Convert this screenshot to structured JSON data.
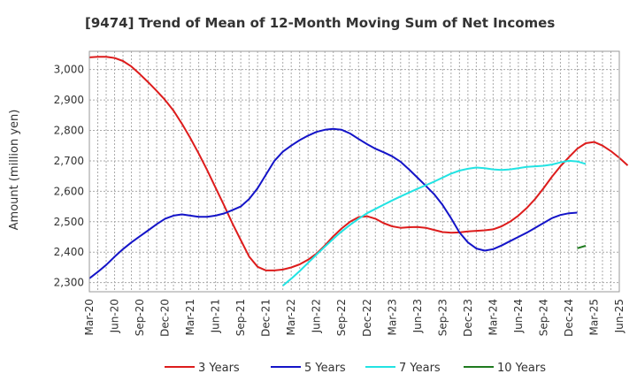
{
  "chart_data": {
    "type": "line",
    "title": "[9474]  Trend of Mean of 12-Month Moving Sum of Net Incomes",
    "ylabel": "Amount (million yen)",
    "xlabel": "",
    "ylim": [
      2270,
      3060
    ],
    "yticks": [
      2300,
      2400,
      2500,
      2600,
      2700,
      2800,
      2900,
      3000
    ],
    "ytick_labels": [
      "2,300",
      "2,400",
      "2,500",
      "2,600",
      "2,700",
      "2,800",
      "2,900",
      "3,000"
    ],
    "x_ticks": [
      "Mar-20",
      "Jun-20",
      "Sep-20",
      "Dec-20",
      "Mar-21",
      "Jun-21",
      "Sep-21",
      "Dec-21",
      "Mar-22",
      "Jun-22",
      "Sep-22",
      "Dec-22",
      "Mar-23",
      "Jun-23",
      "Sep-23",
      "Dec-23",
      "Mar-24",
      "Jun-24",
      "Sep-24",
      "Dec-24",
      "Mar-25",
      "Jun-25"
    ],
    "grid": true,
    "legend_position": "bottom",
    "series": [
      {
        "name": "3 Years",
        "color": "#dd1c1c",
        "start": "Mar-20",
        "values": [
          3040,
          3042,
          3042,
          3038,
          3028,
          3010,
          2985,
          2958,
          2930,
          2900,
          2865,
          2822,
          2775,
          2724,
          2670,
          2612,
          2555,
          2495,
          2440,
          2385,
          2352,
          2340,
          2340,
          2343,
          2350,
          2360,
          2375,
          2395,
          2422,
          2452,
          2478,
          2500,
          2515,
          2518,
          2510,
          2495,
          2485,
          2480,
          2482,
          2483,
          2480,
          2473,
          2466,
          2464,
          2465,
          2468,
          2470,
          2472,
          2475,
          2485,
          2500,
          2520,
          2545,
          2575,
          2610,
          2648,
          2682,
          2712,
          2740,
          2758,
          2762,
          2750,
          2732,
          2710,
          2685
        ]
      },
      {
        "name": "5 Years",
        "color": "#1414c8",
        "start": "Mar-20",
        "values": [
          2314,
          2335,
          2358,
          2385,
          2410,
          2432,
          2452,
          2472,
          2492,
          2510,
          2520,
          2524,
          2520,
          2516,
          2516,
          2520,
          2527,
          2538,
          2550,
          2575,
          2610,
          2655,
          2700,
          2730,
          2750,
          2768,
          2783,
          2795,
          2802,
          2805,
          2802,
          2790,
          2772,
          2755,
          2740,
          2728,
          2715,
          2697,
          2672,
          2645,
          2618,
          2590,
          2555,
          2512,
          2465,
          2432,
          2412,
          2405,
          2410,
          2422,
          2436,
          2450,
          2464,
          2480,
          2496,
          2512,
          2522,
          2528,
          2530
        ]
      },
      {
        "name": "7 Years",
        "color": "#22e3e3",
        "start": "Feb-22",
        "values": [
          2290,
          2313,
          2338,
          2365,
          2392,
          2418,
          2444,
          2468,
          2490,
          2510,
          2528,
          2542,
          2556,
          2570,
          2583,
          2596,
          2608,
          2620,
          2632,
          2645,
          2658,
          2668,
          2674,
          2678,
          2676,
          2672,
          2670,
          2672,
          2676,
          2680,
          2682,
          2684,
          2688,
          2695,
          2700,
          2698,
          2690
        ]
      },
      {
        "name": "10 Years",
        "color": "#1e7a1e",
        "start": "Jan-25",
        "values": [
          2413,
          2421
        ]
      }
    ]
  }
}
